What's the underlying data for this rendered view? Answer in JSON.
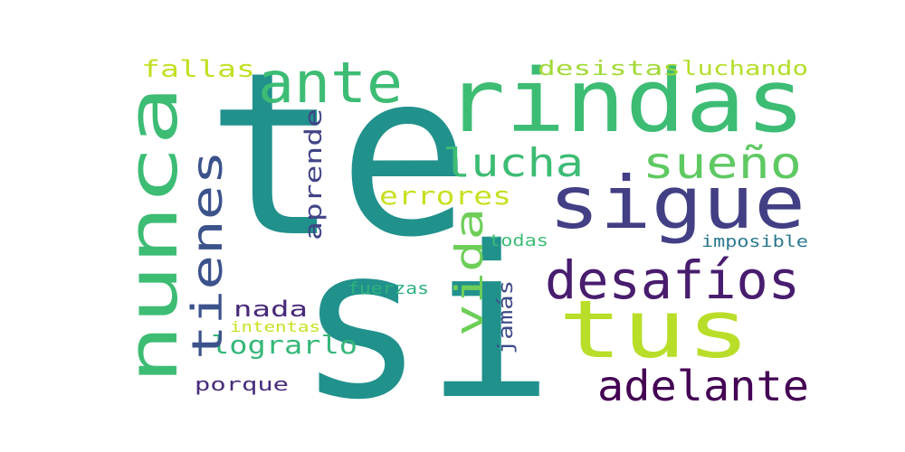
{
  "words": [
    {
      "text": "te",
      "color": "#21918c"
    },
    {
      "text": "si",
      "color": "#21918c"
    },
    {
      "text": "rindas",
      "color": "#3dbc74"
    },
    {
      "text": "nunca",
      "color": "#3dbc74"
    },
    {
      "text": "sigue",
      "color": "#423f85"
    },
    {
      "text": "tus",
      "color": "#b8de29"
    },
    {
      "text": "desafíos",
      "color": "#481c6e"
    },
    {
      "text": "adelante",
      "color": "#440154"
    },
    {
      "text": "ante",
      "color": "#3dbc74"
    },
    {
      "text": "tienes",
      "color": "#3b528b"
    },
    {
      "text": "sueño",
      "color": "#5ec962"
    },
    {
      "text": "lucha",
      "color": "#3dbc74"
    },
    {
      "text": "vida",
      "color": "#6ece58"
    },
    {
      "text": "errores",
      "color": "#c8e020"
    },
    {
      "text": "aprende",
      "color": "#414487"
    },
    {
      "text": "fallas",
      "color": "#c2df23"
    },
    {
      "text": "desistas",
      "color": "#a2da37"
    },
    {
      "text": "luchando",
      "color": "#b5de2b"
    },
    {
      "text": "lograrlo",
      "color": "#35b779"
    },
    {
      "text": "nada",
      "color": "#482878"
    },
    {
      "text": "intentas",
      "color": "#c8e020"
    },
    {
      "text": "porque",
      "color": "#472d7b"
    },
    {
      "text": "jamás",
      "color": "#3e4a89"
    },
    {
      "text": "fuerzas",
      "color": "#2db27d"
    },
    {
      "text": "todas",
      "color": "#3dbc74"
    },
    {
      "text": "imposible",
      "color": "#2a788e"
    }
  ]
}
